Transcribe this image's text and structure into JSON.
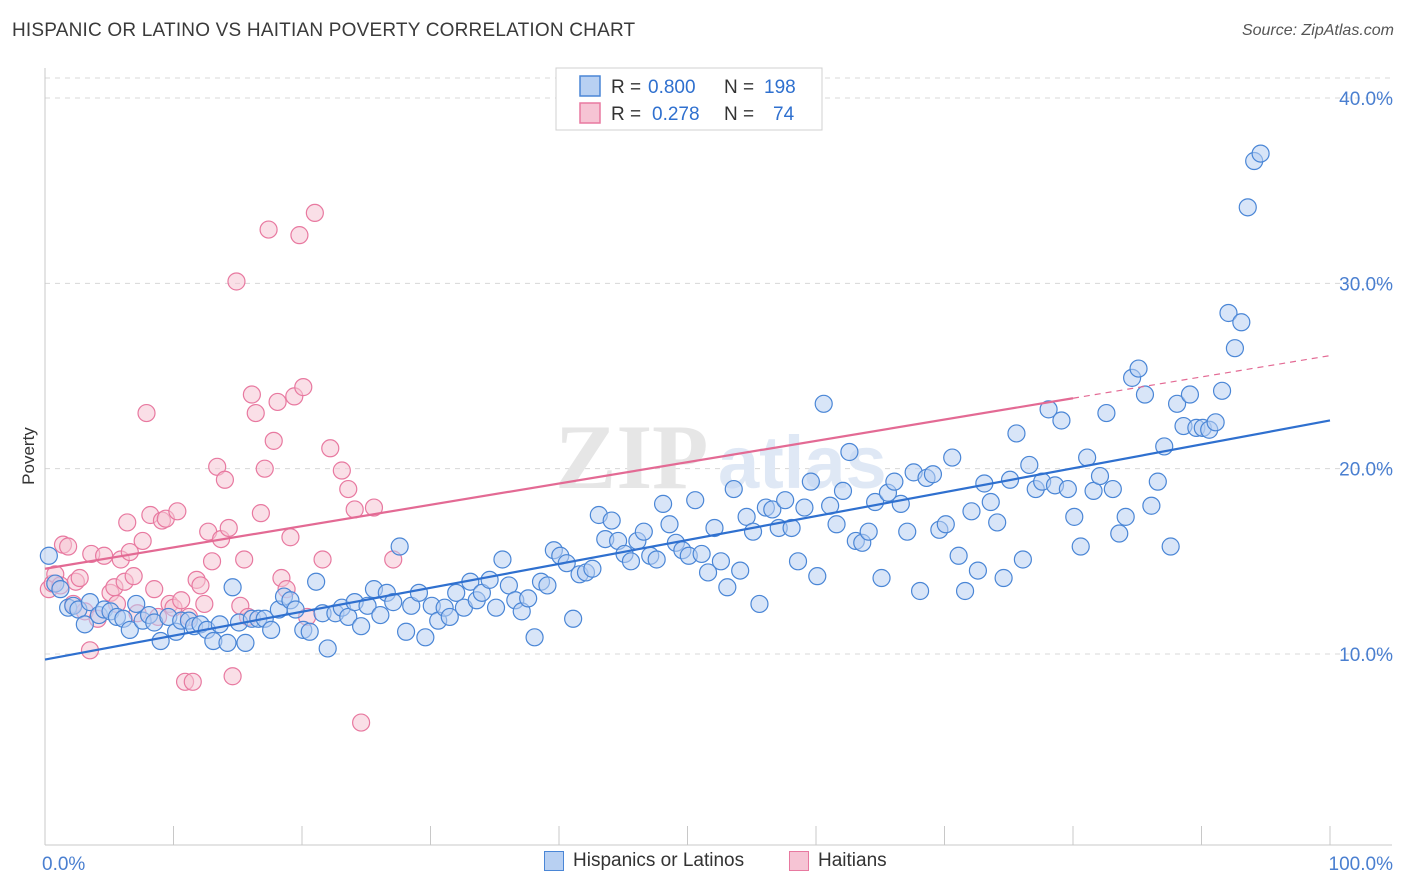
{
  "title": "HISPANIC OR LATINO VS HAITIAN POVERTY CORRELATION CHART",
  "source": "Source: ZipAtlas.com",
  "watermark": {
    "zip": "ZIP",
    "atlas": "atlas"
  },
  "colors": {
    "blue": "#4a86d6",
    "blue_fill": "#b8d0f2",
    "blue_line": "#2f70cf",
    "pink": "#e879a0",
    "pink_fill": "#f6c4d4",
    "pink_line": "#e36a94",
    "axis_text": "#4a7fd0",
    "grid": "#d8d8d8"
  },
  "legend_top": [
    {
      "r_label": "R =",
      "r_value": "0.800",
      "n_label": "N =",
      "n_value": "198"
    },
    {
      "r_label": "R =",
      "r_value": "0.278",
      "n_label": "N =",
      "n_value": "74"
    }
  ],
  "legend_bottom": [
    "Hispanics or Latinos",
    "Haitians"
  ],
  "chart_data": {
    "type": "scatter",
    "title": "HISPANIC OR LATINO VS HAITIAN POVERTY CORRELATION CHART",
    "xlabel": "",
    "ylabel": "Poverty",
    "xlim": [
      0,
      100
    ],
    "ylim": [
      0,
      42
    ],
    "x_tick_labels": [
      "0.0%",
      "100.0%"
    ],
    "y_ticks": [
      10,
      20,
      30,
      40
    ],
    "y_tick_labels": [
      "10.0%",
      "20.0%",
      "30.0%",
      "40.0%"
    ],
    "grid": true,
    "legend_position": "top-center",
    "series": [
      {
        "name": "Hispanics or Latinos",
        "R": 0.8,
        "N": 198,
        "trend": {
          "x0": 0,
          "y0": 9.7,
          "x1": 100,
          "y1": 22.6
        },
        "points": [
          [
            0.3,
            15.3
          ],
          [
            0.8,
            13.8
          ],
          [
            1.2,
            13.5
          ],
          [
            1.8,
            12.5
          ],
          [
            2.2,
            12.6
          ],
          [
            2.6,
            12.4
          ],
          [
            3.1,
            11.6
          ],
          [
            3.5,
            12.8
          ],
          [
            4.2,
            12.1
          ],
          [
            4.6,
            12.4
          ],
          [
            5.1,
            12.3
          ],
          [
            5.6,
            12.0
          ],
          [
            6.1,
            11.9
          ],
          [
            6.6,
            11.3
          ],
          [
            7.1,
            12.7
          ],
          [
            7.6,
            11.8
          ],
          [
            8.1,
            12.1
          ],
          [
            8.5,
            11.7
          ],
          [
            9.0,
            10.7
          ],
          [
            9.6,
            12.0
          ],
          [
            10.2,
            11.2
          ],
          [
            10.6,
            11.8
          ],
          [
            11.2,
            11.8
          ],
          [
            11.6,
            11.5
          ],
          [
            12.1,
            11.6
          ],
          [
            12.6,
            11.3
          ],
          [
            13.1,
            10.7
          ],
          [
            13.6,
            11.6
          ],
          [
            14.2,
            10.6
          ],
          [
            14.6,
            13.6
          ],
          [
            15.1,
            11.7
          ],
          [
            15.6,
            10.6
          ],
          [
            16.1,
            11.9
          ],
          [
            16.6,
            11.9
          ],
          [
            17.1,
            11.9
          ],
          [
            17.6,
            11.3
          ],
          [
            18.2,
            12.4
          ],
          [
            18.6,
            13.1
          ],
          [
            19.1,
            12.9
          ],
          [
            19.5,
            12.4
          ],
          [
            20.1,
            11.3
          ],
          [
            20.6,
            11.2
          ],
          [
            21.1,
            13.9
          ],
          [
            21.6,
            12.2
          ],
          [
            22.0,
            10.3
          ],
          [
            22.6,
            12.2
          ],
          [
            23.1,
            12.5
          ],
          [
            23.6,
            12.0
          ],
          [
            24.1,
            12.8
          ],
          [
            24.6,
            11.5
          ],
          [
            25.1,
            12.6
          ],
          [
            25.6,
            13.5
          ],
          [
            26.1,
            12.1
          ],
          [
            26.6,
            13.3
          ],
          [
            27.1,
            12.8
          ],
          [
            27.6,
            15.8
          ],
          [
            28.1,
            11.2
          ],
          [
            28.5,
            12.6
          ],
          [
            29.1,
            13.3
          ],
          [
            29.6,
            10.9
          ],
          [
            30.1,
            12.6
          ],
          [
            30.6,
            11.8
          ],
          [
            31.1,
            12.5
          ],
          [
            31.5,
            12.0
          ],
          [
            32.0,
            13.3
          ],
          [
            32.6,
            12.5
          ],
          [
            33.1,
            13.9
          ],
          [
            33.6,
            12.9
          ],
          [
            34.0,
            13.3
          ],
          [
            34.6,
            14.0
          ],
          [
            35.1,
            12.5
          ],
          [
            35.6,
            15.1
          ],
          [
            36.1,
            13.7
          ],
          [
            36.6,
            12.9
          ],
          [
            37.1,
            12.3
          ],
          [
            37.6,
            13.0
          ],
          [
            38.1,
            10.9
          ],
          [
            38.6,
            13.9
          ],
          [
            39.1,
            13.7
          ],
          [
            39.6,
            15.6
          ],
          [
            40.1,
            15.3
          ],
          [
            40.6,
            14.9
          ],
          [
            41.1,
            11.9
          ],
          [
            41.6,
            14.3
          ],
          [
            42.1,
            14.4
          ],
          [
            42.6,
            14.6
          ],
          [
            43.1,
            17.5
          ],
          [
            43.6,
            16.2
          ],
          [
            44.1,
            17.2
          ],
          [
            44.6,
            16.1
          ],
          [
            45.1,
            15.4
          ],
          [
            45.6,
            15.0
          ],
          [
            46.1,
            16.1
          ],
          [
            46.6,
            16.6
          ],
          [
            47.1,
            15.3
          ],
          [
            47.6,
            15.1
          ],
          [
            48.1,
            18.1
          ],
          [
            48.6,
            17.0
          ],
          [
            49.1,
            16.0
          ],
          [
            49.6,
            15.6
          ],
          [
            50.1,
            15.3
          ],
          [
            50.6,
            18.3
          ],
          [
            51.1,
            15.4
          ],
          [
            51.6,
            14.4
          ],
          [
            52.1,
            16.8
          ],
          [
            52.6,
            15.0
          ],
          [
            53.1,
            13.6
          ],
          [
            53.6,
            18.9
          ],
          [
            54.1,
            14.5
          ],
          [
            54.6,
            17.4
          ],
          [
            55.1,
            16.6
          ],
          [
            55.6,
            12.7
          ],
          [
            56.1,
            17.9
          ],
          [
            56.6,
            17.8
          ],
          [
            57.1,
            16.8
          ],
          [
            57.6,
            18.3
          ],
          [
            58.1,
            16.8
          ],
          [
            58.6,
            15.0
          ],
          [
            59.1,
            17.9
          ],
          [
            59.6,
            19.3
          ],
          [
            60.1,
            14.2
          ],
          [
            60.6,
            23.5
          ],
          [
            61.1,
            18.0
          ],
          [
            61.6,
            17.0
          ],
          [
            62.1,
            18.8
          ],
          [
            62.6,
            20.9
          ],
          [
            63.1,
            16.1
          ],
          [
            63.6,
            16.0
          ],
          [
            64.1,
            16.6
          ],
          [
            64.6,
            18.2
          ],
          [
            65.1,
            14.1
          ],
          [
            65.6,
            18.7
          ],
          [
            66.1,
            19.3
          ],
          [
            66.6,
            18.1
          ],
          [
            67.1,
            16.6
          ],
          [
            67.6,
            19.8
          ],
          [
            68.1,
            13.4
          ],
          [
            68.6,
            19.5
          ],
          [
            69.1,
            19.7
          ],
          [
            69.6,
            16.7
          ],
          [
            70.1,
            17.0
          ],
          [
            70.6,
            20.6
          ],
          [
            71.1,
            15.3
          ],
          [
            71.6,
            13.4
          ],
          [
            72.1,
            17.7
          ],
          [
            72.6,
            14.5
          ],
          [
            73.1,
            19.2
          ],
          [
            73.6,
            18.2
          ],
          [
            74.1,
            17.1
          ],
          [
            74.6,
            14.1
          ],
          [
            75.1,
            19.4
          ],
          [
            75.6,
            21.9
          ],
          [
            76.1,
            15.1
          ],
          [
            76.6,
            20.2
          ],
          [
            77.1,
            18.9
          ],
          [
            77.6,
            19.3
          ],
          [
            78.1,
            23.2
          ],
          [
            78.6,
            19.1
          ],
          [
            79.1,
            22.6
          ],
          [
            79.6,
            18.9
          ],
          [
            80.1,
            17.4
          ],
          [
            80.6,
            15.8
          ],
          [
            81.1,
            20.6
          ],
          [
            81.6,
            18.8
          ],
          [
            82.1,
            19.6
          ],
          [
            82.6,
            23.0
          ],
          [
            83.1,
            18.9
          ],
          [
            83.6,
            16.5
          ],
          [
            84.1,
            17.4
          ],
          [
            84.6,
            24.9
          ],
          [
            85.1,
            25.4
          ],
          [
            85.6,
            24.0
          ],
          [
            86.1,
            18.0
          ],
          [
            86.6,
            19.3
          ],
          [
            87.1,
            21.2
          ],
          [
            87.6,
            15.8
          ],
          [
            88.1,
            23.5
          ],
          [
            88.6,
            22.3
          ],
          [
            89.1,
            24.0
          ],
          [
            89.6,
            22.2
          ],
          [
            90.1,
            22.2
          ],
          [
            90.6,
            22.1
          ],
          [
            91.1,
            22.5
          ],
          [
            91.6,
            24.2
          ],
          [
            92.1,
            28.4
          ],
          [
            92.6,
            26.5
          ],
          [
            93.1,
            27.9
          ],
          [
            93.6,
            34.1
          ],
          [
            94.1,
            36.6
          ],
          [
            94.6,
            37.0
          ]
        ]
      },
      {
        "name": "Haitians",
        "R": 0.278,
        "N": 74,
        "trend": {
          "x0": 0,
          "y0": 14.6,
          "x1": 80,
          "y1": 23.8,
          "x1_dashed": 100,
          "y1_dashed": 26.1
        },
        "points": [
          [
            0.3,
            13.5
          ],
          [
            0.6,
            13.8
          ],
          [
            0.8,
            14.3
          ],
          [
            1.2,
            13.7
          ],
          [
            1.4,
            15.9
          ],
          [
            1.8,
            15.8
          ],
          [
            2.2,
            12.7
          ],
          [
            2.4,
            13.9
          ],
          [
            2.7,
            14.1
          ],
          [
            3.1,
            12.3
          ],
          [
            3.5,
            10.2
          ],
          [
            3.6,
            15.4
          ],
          [
            4.1,
            11.9
          ],
          [
            4.6,
            15.3
          ],
          [
            5.1,
            13.3
          ],
          [
            5.4,
            13.6
          ],
          [
            5.6,
            12.7
          ],
          [
            5.9,
            15.1
          ],
          [
            6.2,
            13.9
          ],
          [
            6.4,
            17.1
          ],
          [
            6.6,
            15.5
          ],
          [
            6.9,
            14.2
          ],
          [
            7.2,
            12.2
          ],
          [
            7.6,
            16.1
          ],
          [
            7.9,
            23.0
          ],
          [
            8.2,
            17.5
          ],
          [
            8.5,
            13.5
          ],
          [
            8.8,
            12.0
          ],
          [
            9.1,
            17.2
          ],
          [
            9.4,
            17.3
          ],
          [
            9.7,
            12.7
          ],
          [
            10.0,
            12.5
          ],
          [
            10.3,
            17.7
          ],
          [
            10.6,
            12.9
          ],
          [
            10.9,
            8.5
          ],
          [
            11.2,
            12.0
          ],
          [
            11.5,
            8.5
          ],
          [
            11.8,
            14.0
          ],
          [
            12.1,
            13.7
          ],
          [
            12.4,
            12.7
          ],
          [
            12.7,
            16.6
          ],
          [
            13.0,
            15.0
          ],
          [
            13.4,
            20.1
          ],
          [
            13.7,
            16.2
          ],
          [
            14.0,
            19.4
          ],
          [
            14.3,
            16.8
          ],
          [
            14.6,
            8.8
          ],
          [
            14.9,
            30.1
          ],
          [
            15.2,
            12.6
          ],
          [
            15.5,
            15.1
          ],
          [
            15.8,
            12.0
          ],
          [
            16.1,
            24.0
          ],
          [
            16.4,
            23.0
          ],
          [
            16.8,
            17.6
          ],
          [
            17.1,
            20.0
          ],
          [
            17.4,
            32.9
          ],
          [
            17.8,
            21.5
          ],
          [
            18.1,
            23.6
          ],
          [
            18.4,
            14.1
          ],
          [
            18.8,
            13.5
          ],
          [
            19.1,
            16.3
          ],
          [
            19.4,
            23.9
          ],
          [
            19.8,
            32.6
          ],
          [
            20.1,
            24.4
          ],
          [
            20.4,
            12.0
          ],
          [
            21.0,
            33.8
          ],
          [
            21.6,
            15.1
          ],
          [
            22.2,
            21.1
          ],
          [
            23.1,
            19.9
          ],
          [
            23.6,
            18.9
          ],
          [
            24.1,
            17.8
          ],
          [
            24.6,
            6.3
          ],
          [
            25.6,
            17.9
          ],
          [
            27.1,
            15.1
          ]
        ]
      }
    ]
  }
}
